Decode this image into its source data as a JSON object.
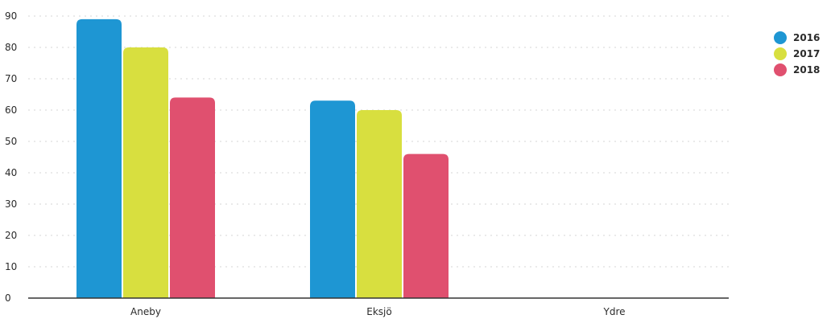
{
  "chart_data": {
    "type": "bar",
    "title": "",
    "xlabel": "",
    "ylabel": "",
    "categories": [
      "Aneby",
      "Eksjö",
      "Ydre"
    ],
    "series": [
      {
        "name": "2016",
        "color": "#1e96d3",
        "values": [
          89,
          63,
          0
        ]
      },
      {
        "name": "2017",
        "color": "#d8df3f",
        "values": [
          80,
          60,
          0
        ]
      },
      {
        "name": "2018",
        "color": "#e0506f",
        "values": [
          64,
          46,
          0
        ]
      }
    ],
    "ylim": [
      0,
      90
    ],
    "yticks": [
      0,
      10,
      20,
      30,
      40,
      50,
      60,
      70,
      80,
      90
    ],
    "grid": true,
    "legend_position": "top-right"
  }
}
